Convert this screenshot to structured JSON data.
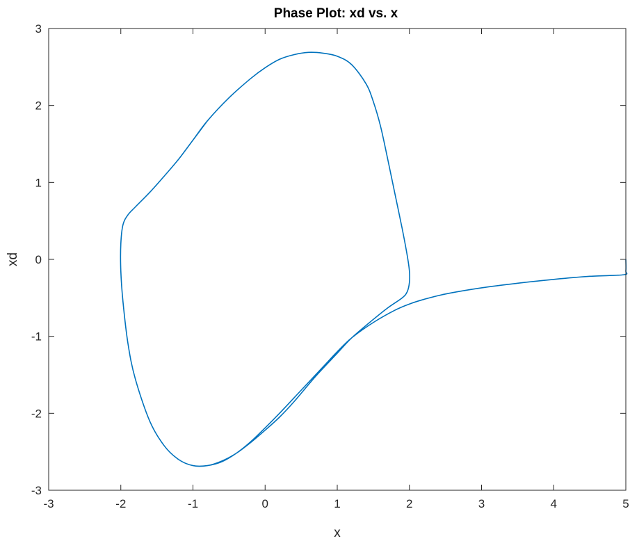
{
  "chart_data": {
    "type": "line",
    "title": "Phase Plot: xd vs. x",
    "xlabel": "x",
    "ylabel": "xd",
    "xlim": [
      -3,
      5
    ],
    "ylim": [
      -3,
      3
    ],
    "xticks": [
      -3,
      -2,
      -1,
      0,
      1,
      2,
      3,
      4,
      5
    ],
    "yticks": [
      -3,
      -2,
      -1,
      0,
      1,
      2,
      3
    ],
    "grid": false,
    "line_color": "#0072BD",
    "series": [
      {
        "x": [
          5.0,
          5.0,
          4.97,
          4.5,
          4.0,
          3.5,
          3.0,
          2.5,
          2.2,
          2.0,
          1.8,
          1.5,
          1.2,
          1.0,
          0.8,
          0.5,
          0.2,
          0.0,
          -0.2,
          -0.4,
          -0.6,
          -0.8,
          -1.0,
          -1.2,
          -1.4,
          -1.6,
          -1.8,
          -1.9,
          -1.97,
          -2.0,
          -2.0,
          -1.97,
          -1.9,
          -1.8,
          -1.6,
          -1.4,
          -1.2,
          -1.0,
          -0.8,
          -0.5,
          -0.2,
          0.0,
          0.2,
          0.4,
          0.6,
          0.8,
          1.0,
          1.2,
          1.4,
          1.5,
          1.6,
          1.7,
          1.8,
          1.9,
          1.97,
          2.0,
          2.0,
          1.97,
          1.9,
          1.7,
          1.5,
          1.2,
          1.0,
          0.7,
          0.4,
          0.2,
          0.0,
          -0.2,
          -0.4,
          -0.6,
          -0.8,
          -1.0,
          -1.2,
          -1.4,
          -1.6,
          -1.8,
          -1.9,
          -1.97,
          -2.0,
          -2.0,
          -1.97,
          -1.9,
          -1.8,
          -1.6,
          -1.4,
          -1.2,
          -1.0,
          -0.8
        ],
        "y": [
          0.0,
          -0.15,
          -0.2,
          -0.22,
          -0.26,
          -0.31,
          -0.37,
          -0.45,
          -0.52,
          -0.58,
          -0.66,
          -0.82,
          -1.02,
          -1.2,
          -1.4,
          -1.7,
          -2.0,
          -2.19,
          -2.37,
          -2.52,
          -2.63,
          -2.68,
          -2.68,
          -2.6,
          -2.42,
          -2.1,
          -1.55,
          -1.1,
          -0.55,
          -0.15,
          0.2,
          0.45,
          0.58,
          0.68,
          0.87,
          1.08,
          1.3,
          1.55,
          1.8,
          2.1,
          2.35,
          2.49,
          2.6,
          2.66,
          2.69,
          2.68,
          2.64,
          2.53,
          2.28,
          2.05,
          1.73,
          1.3,
          0.85,
          0.4,
          0.05,
          -0.15,
          -0.3,
          -0.42,
          -0.5,
          -0.63,
          -0.78,
          -1.02,
          -1.22,
          -1.52,
          -1.85,
          -2.05,
          -2.22,
          -2.38,
          -2.52,
          -2.62,
          -2.68,
          -2.68,
          -2.6,
          -2.42,
          -2.1,
          -1.55,
          -1.1,
          -0.55,
          -0.15,
          0.2,
          0.45,
          0.58,
          0.68,
          0.87,
          1.08,
          1.3,
          1.55,
          1.8
        ]
      }
    ]
  }
}
